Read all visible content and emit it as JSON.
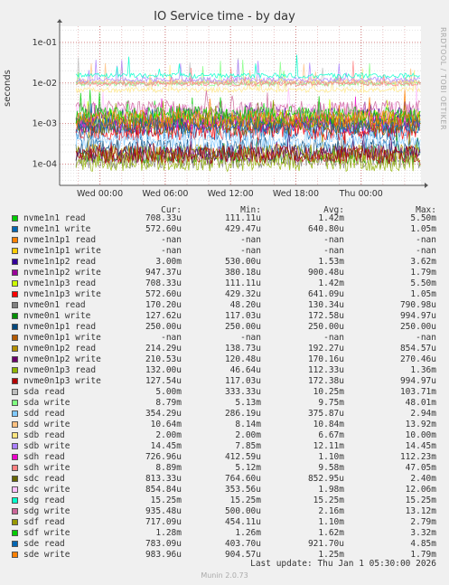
{
  "title": "IO Service time - by day",
  "side_label": "RRDTOOL / TOBI OETIKER",
  "footer": "Munin 2.0.73",
  "last_update": "Last update: Thu Jan  1 05:30:00 2026",
  "columns": [
    "Cur:",
    "Min:",
    "Avg:",
    "Max:"
  ],
  "chart_data": {
    "type": "line",
    "title": "IO Service time - by day",
    "ylabel": "seconds",
    "yscale": "log",
    "ylim": [
      3e-05,
      0.25
    ],
    "yticks": [
      "1e-04",
      "1e-03",
      "1e-02",
      "1e-01"
    ],
    "ytick_values": [
      0.0001,
      0.001,
      0.01,
      0.1
    ],
    "xticks": [
      "Wed 00:00",
      "Wed 06:00",
      "Wed 12:00",
      "Wed 18:00",
      "Thu 00:00"
    ],
    "xtick_hours": [
      0,
      6,
      12,
      18,
      24
    ],
    "xlim_hours": [
      -3.7,
      29.5
    ],
    "grid": true,
    "series": [
      {
        "name": "nvme1n1 read",
        "color": "#00cc00",
        "cur": "708.33u",
        "min": "111.11u",
        "avg": "1.42m",
        "max": "5.50m",
        "typical": 0.0014
      },
      {
        "name": "nvme1n1 write",
        "color": "#0066b3",
        "cur": "572.60u",
        "min": "429.47u",
        "avg": "640.80u",
        "max": "1.05m",
        "typical": 0.00064
      },
      {
        "name": "nvme1n1p1 read",
        "color": "#ff8000",
        "cur": "-nan",
        "min": "-nan",
        "avg": "-nan",
        "max": "-nan",
        "typical": null
      },
      {
        "name": "nvme1n1p1 write",
        "color": "#ffcc00",
        "cur": "-nan",
        "min": "-nan",
        "avg": "-nan",
        "max": "-nan",
        "typical": null
      },
      {
        "name": "nvme1n1p2 read",
        "color": "#330099",
        "cur": "3.00m",
        "min": "530.00u",
        "avg": "1.53m",
        "max": "3.62m",
        "typical": 0.0015
      },
      {
        "name": "nvme1n1p2 write",
        "color": "#990099",
        "cur": "947.37u",
        "min": "380.18u",
        "avg": "900.48u",
        "max": "1.79m",
        "typical": 0.0009
      },
      {
        "name": "nvme1n1p3 read",
        "color": "#ccff00",
        "cur": "708.33u",
        "min": "111.11u",
        "avg": "1.42m",
        "max": "5.50m",
        "typical": 0.0014
      },
      {
        "name": "nvme1n1p3 write",
        "color": "#ff0000",
        "cur": "572.60u",
        "min": "429.32u",
        "avg": "641.09u",
        "max": "1.05m",
        "typical": 0.00064
      },
      {
        "name": "nvme0n1 read",
        "color": "#808080",
        "cur": "170.20u",
        "min": "48.20u",
        "avg": "130.34u",
        "max": "790.98u",
        "typical": 0.00013
      },
      {
        "name": "nvme0n1 write",
        "color": "#008f00",
        "cur": "127.62u",
        "min": "117.03u",
        "avg": "172.58u",
        "max": "994.97u",
        "typical": 0.00017
      },
      {
        "name": "nvme0n1p1 read",
        "color": "#00487d",
        "cur": "250.00u",
        "min": "250.00u",
        "avg": "250.00u",
        "max": "250.00u",
        "typical": 0.00025
      },
      {
        "name": "nvme0n1p1 write",
        "color": "#b35a00",
        "cur": "-nan",
        "min": "-nan",
        "avg": "-nan",
        "max": "-nan",
        "typical": null
      },
      {
        "name": "nvme0n1p2 read",
        "color": "#b38f00",
        "cur": "214.29u",
        "min": "138.73u",
        "avg": "192.27u",
        "max": "854.57u",
        "typical": 0.00019
      },
      {
        "name": "nvme0n1p2 write",
        "color": "#6b006b",
        "cur": "210.53u",
        "min": "120.48u",
        "avg": "170.16u",
        "max": "270.46u",
        "typical": 0.00017
      },
      {
        "name": "nvme0n1p3 read",
        "color": "#8fb300",
        "cur": "132.00u",
        "min": "46.64u",
        "avg": "112.33u",
        "max": "1.36m",
        "typical": 0.00011
      },
      {
        "name": "nvme0n1p3 write",
        "color": "#b30000",
        "cur": "127.54u",
        "min": "117.03u",
        "avg": "172.38u",
        "max": "994.97u",
        "typical": 0.00017
      },
      {
        "name": "sda read",
        "color": "#bebebe",
        "cur": "5.00m",
        "min": "333.33u",
        "avg": "10.25m",
        "max": "103.71m",
        "typical": 0.0102
      },
      {
        "name": "sda write",
        "color": "#80ff80",
        "cur": "8.79m",
        "min": "5.13m",
        "avg": "9.75m",
        "max": "48.01m",
        "typical": 0.0097
      },
      {
        "name": "sdd read",
        "color": "#80c9ff",
        "cur": "354.29u",
        "min": "286.19u",
        "avg": "375.87u",
        "max": "2.94m",
        "typical": 0.00038
      },
      {
        "name": "sdd write",
        "color": "#ffc080",
        "cur": "10.64m",
        "min": "8.14m",
        "avg": "10.84m",
        "max": "13.92m",
        "typical": 0.0108
      },
      {
        "name": "sdb read",
        "color": "#ffe680",
        "cur": "2.00m",
        "min": "2.00m",
        "avg": "6.67m",
        "max": "10.00m",
        "typical": 0.0067
      },
      {
        "name": "sdb write",
        "color": "#aa80ff",
        "cur": "14.45m",
        "min": "7.85m",
        "avg": "12.11m",
        "max": "14.45m",
        "typical": 0.0121
      },
      {
        "name": "sdh read",
        "color": "#ee00cc",
        "cur": "726.96u",
        "min": "412.59u",
        "avg": "1.10m",
        "max": "112.23m",
        "typical": 0.0011
      },
      {
        "name": "sdh write",
        "color": "#ff8080",
        "cur": "8.89m",
        "min": "5.12m",
        "avg": "9.58m",
        "max": "47.05m",
        "typical": 0.0096
      },
      {
        "name": "sdc read",
        "color": "#666600",
        "cur": "813.33u",
        "min": "764.60u",
        "avg": "852.95u",
        "max": "2.40m",
        "typical": 0.00085
      },
      {
        "name": "sdc write",
        "color": "#ffbfff",
        "cur": "854.84u",
        "min": "353.56u",
        "avg": "1.98m",
        "max": "12.06m",
        "typical": 0.002
      },
      {
        "name": "sdg read",
        "color": "#00ffcc",
        "cur": "15.25m",
        "min": "15.25m",
        "avg": "15.25m",
        "max": "15.25m",
        "typical": 0.0152
      },
      {
        "name": "sdg write",
        "color": "#cc6699",
        "cur": "935.48u",
        "min": "500.00u",
        "avg": "2.16m",
        "max": "13.12m",
        "typical": 0.0022
      },
      {
        "name": "sdf read",
        "color": "#999900",
        "cur": "717.09u",
        "min": "454.11u",
        "avg": "1.10m",
        "max": "2.79m",
        "typical": 0.0011
      },
      {
        "name": "sdf write",
        "color": "#00cc00",
        "cur": "1.28m",
        "min": "1.26m",
        "avg": "1.62m",
        "max": "3.32m",
        "typical": 0.0016
      },
      {
        "name": "sde read",
        "color": "#0066b3",
        "cur": "783.09u",
        "min": "403.70u",
        "avg": "921.70u",
        "max": "4.85m",
        "typical": 0.00092
      },
      {
        "name": "sde write",
        "color": "#ff8000",
        "cur": "983.96u",
        "min": "904.57u",
        "avg": "1.25m",
        "max": "1.79m",
        "typical": 0.00125
      }
    ]
  }
}
